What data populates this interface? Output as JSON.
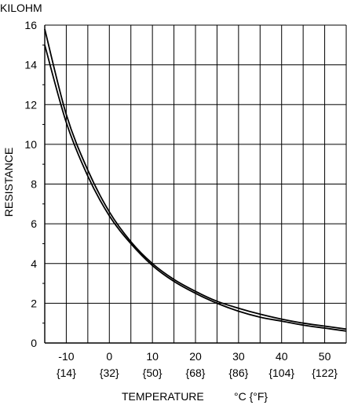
{
  "chart_data": {
    "type": "line",
    "title": "",
    "y_unit_label": "KILOHM",
    "ylabel": "RESISTANCE",
    "xlabel": "TEMPERATURE",
    "x_unit_label": "°C {°F}",
    "xlim": [
      -15,
      55
    ],
    "ylim": [
      0,
      16
    ],
    "grid": true,
    "x_ticks": [
      {
        "c": "-10",
        "f": "{14}"
      },
      {
        "c": "0",
        "f": "{32}"
      },
      {
        "c": "10",
        "f": "{50}"
      },
      {
        "c": "20",
        "f": "{68}"
      },
      {
        "c": "30",
        "f": "{86}"
      },
      {
        "c": "40",
        "f": "{104}"
      },
      {
        "c": "50",
        "f": "{122}"
      }
    ],
    "y_ticks": [
      "0",
      "2",
      "4",
      "6",
      "8",
      "10",
      "12",
      "14",
      "16"
    ],
    "x_gridlines": [
      -15,
      -10,
      -5,
      0,
      5,
      10,
      15,
      20,
      25,
      30,
      35,
      40,
      45,
      50,
      55
    ],
    "y_gridlines": [
      0,
      2,
      4,
      6,
      8,
      10,
      12,
      14,
      16
    ],
    "series": [
      {
        "x": [
          -15,
          -10,
          -5,
          0,
          5,
          10,
          15,
          20,
          25,
          30,
          35,
          40,
          45,
          50,
          55
        ],
        "y": [
          15.8,
          11.5,
          8.7,
          6.6,
          5.1,
          4.0,
          3.2,
          2.6,
          2.1,
          1.75,
          1.45,
          1.2,
          1.0,
          0.85,
          0.7
        ]
      },
      {
        "x": [
          -15,
          -10,
          -5,
          0,
          5,
          10,
          15,
          20,
          25,
          30,
          35,
          40,
          45,
          50,
          55
        ],
        "y": [
          15.0,
          11.1,
          8.4,
          6.4,
          5.0,
          3.9,
          3.1,
          2.5,
          2.0,
          1.6,
          1.3,
          1.1,
          0.9,
          0.75,
          0.6
        ]
      }
    ]
  }
}
